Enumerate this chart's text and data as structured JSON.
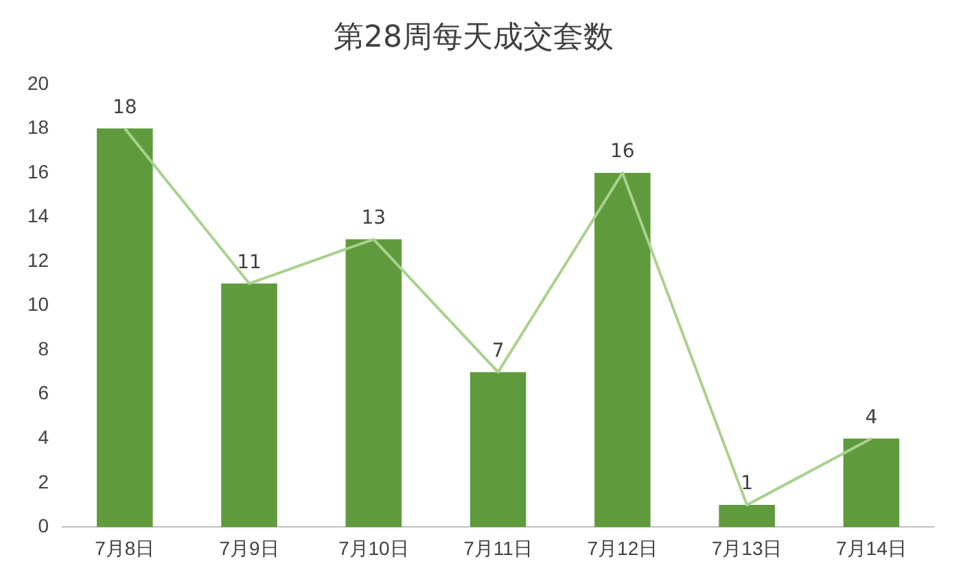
{
  "chart_data": {
    "type": "bar",
    "title": "第28周每天成交套数",
    "categories": [
      "7月8日",
      "7月9日",
      "7月10日",
      "7月11日",
      "7月12日",
      "7月13日",
      "7月14日"
    ],
    "series": [
      {
        "color": "#5f9a3c",
        "values": [
          18,
          11,
          13,
          7,
          16,
          1,
          4
        ],
        "value_labels": [
          "18",
          "11",
          "13",
          "7",
          "16",
          "1",
          "4"
        ]
      },
      {
        "type": "line",
        "color": "#a9d18e",
        "values": [
          18,
          11,
          13,
          7,
          16,
          1,
          4
        ]
      }
    ],
    "ylim": [
      0,
      20
    ],
    "yticks": [
      0,
      2,
      4,
      6,
      8,
      10,
      12,
      14,
      16,
      18,
      20
    ],
    "grid": false,
    "legend": false,
    "marker": "none"
  }
}
